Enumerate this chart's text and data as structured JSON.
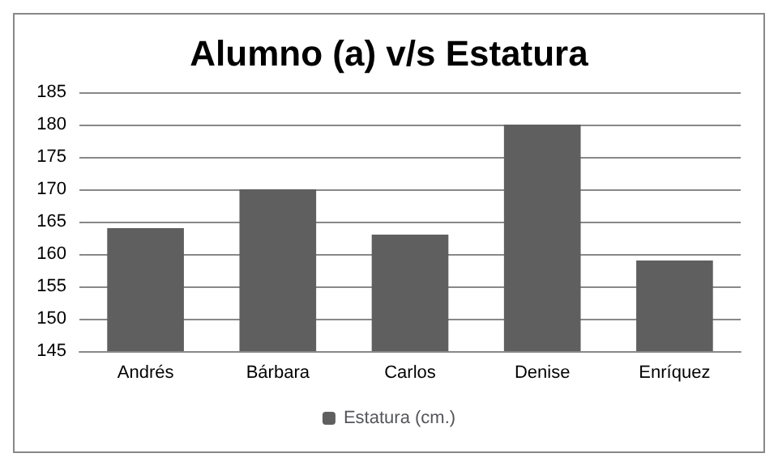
{
  "chart_data": {
    "type": "bar",
    "title": "Alumno (a) v/s Estatura",
    "categories": [
      "Andrés",
      "Bárbara",
      "Carlos",
      "Denise",
      "Enríquez"
    ],
    "series": [
      {
        "name": "Estatura (cm.)",
        "color": "#5f5f5f",
        "values": [
          164,
          170,
          163,
          180,
          159
        ]
      }
    ],
    "ylim": [
      145,
      185
    ],
    "yticks": [
      145,
      150,
      155,
      160,
      165,
      170,
      175,
      180,
      185
    ],
    "grid": "y",
    "legend": "bottom"
  }
}
